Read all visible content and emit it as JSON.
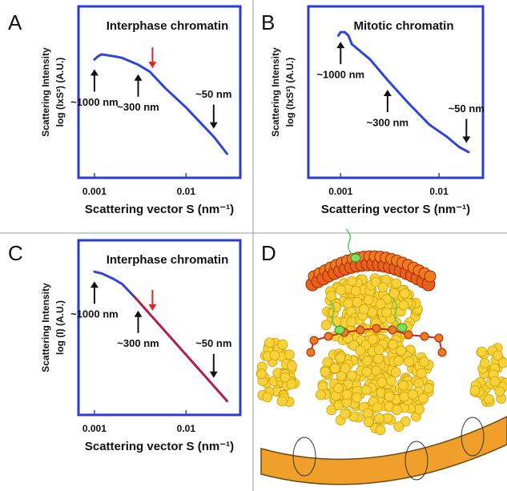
{
  "chart_data": [
    {
      "type": "line",
      "panel_label": "A",
      "title": "Interphase chromatin",
      "xlabel": "Scattering vector S (nm⁻¹)",
      "ylabel": [
        "Scattering Intensity",
        "log (IxS²) (A.U.)"
      ],
      "xscale": "log",
      "xlim": [
        0.00067,
        0.039
      ],
      "xticks": [
        0.001,
        0.01
      ],
      "ylim": [
        0,
        1
      ],
      "series": [
        {
          "color": "#2f45d8",
          "x": [
            0.001,
            0.0011,
            0.0012,
            0.0016,
            0.002,
            0.003,
            0.004,
            0.006,
            0.01,
            0.02,
            0.028
          ],
          "values": [
            0.69,
            0.71,
            0.72,
            0.71,
            0.7,
            0.66,
            0.62,
            0.52,
            0.41,
            0.24,
            0.14
          ]
        }
      ],
      "annotations": [
        {
          "text": "~1000 nm",
          "x": 0.001,
          "direction": "up"
        },
        {
          "text": "~300 nm",
          "x": 0.003,
          "direction": "up"
        },
        {
          "text": "~50 nm",
          "x": 0.02,
          "direction": "down"
        }
      ],
      "highlight_x": 0.0043,
      "highlight_color": "#e8201f"
    },
    {
      "type": "line",
      "panel_label": "B",
      "title": "Mitotic chromatin",
      "xlabel": "Scattering vector S (nm⁻¹)",
      "ylabel": [
        "Scattering Intensity",
        "log (IxS²) (A.U.)"
      ],
      "xscale": "log",
      "xlim": [
        0.00047,
        0.028
      ],
      "xticks": [
        0.001,
        0.01
      ],
      "ylim": [
        0,
        1
      ],
      "series": [
        {
          "color": "#2f45d8",
          "x": [
            0.00095,
            0.001,
            0.0011,
            0.0012,
            0.0013,
            0.002,
            0.003,
            0.005,
            0.008,
            0.012,
            0.016,
            0.02
          ],
          "values": [
            0.83,
            0.85,
            0.85,
            0.83,
            0.78,
            0.69,
            0.57,
            0.43,
            0.31,
            0.24,
            0.18,
            0.15
          ]
        }
      ],
      "annotations": [
        {
          "text": "~1000 nm",
          "x": 0.001,
          "direction": "up"
        },
        {
          "text": "~300 nm",
          "x": 0.003,
          "direction": "up"
        },
        {
          "text": "~50 nm",
          "x": 0.019,
          "direction": "down"
        }
      ]
    },
    {
      "type": "line",
      "panel_label": "C",
      "title": "Interphase chromatin",
      "xlabel": "Scattering vector S (nm⁻¹)",
      "ylabel": [
        "Scattering Intensity",
        "log (I) (A.U.)"
      ],
      "xscale": "log",
      "xlim": [
        0.00067,
        0.039
      ],
      "xticks": [
        0.001,
        0.01
      ],
      "ylim": [
        0,
        1
      ],
      "series": [
        {
          "color": "#2f45d8",
          "x": [
            0.001,
            0.0012,
            0.0016,
            0.002,
            0.0028
          ],
          "values": [
            0.82,
            0.81,
            0.78,
            0.75,
            0.67
          ]
        },
        {
          "color": "#b0204a",
          "x": [
            0.0028,
            0.028
          ],
          "values": [
            0.67,
            0.08
          ]
        }
      ],
      "annotations": [
        {
          "text": "~1000 nm",
          "x": 0.001,
          "direction": "up"
        },
        {
          "text": "~300 nm",
          "x": 0.003,
          "direction": "up"
        },
        {
          "text": "~50 nm",
          "x": 0.02,
          "direction": "down"
        }
      ],
      "highlight_x": 0.0043,
      "highlight_color": "#e8201f"
    }
  ],
  "diagram": {
    "panel_label": "D"
  }
}
